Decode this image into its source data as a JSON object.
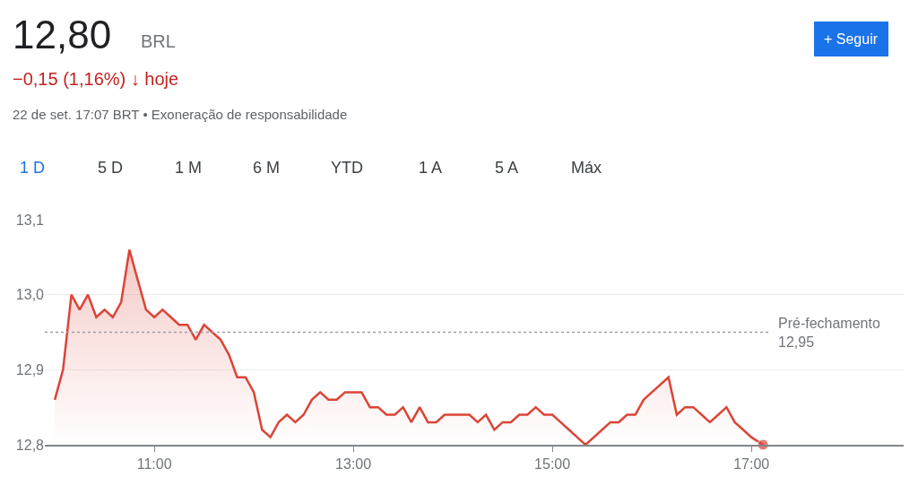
{
  "chart_data": {
    "type": "area",
    "annotations": [
      "12,80",
      "BRL",
      "−0,15 (1,16%) ↓ hoje",
      "22 de set. 17:07 BRT • Exoneração de responsabilidade",
      "+ Seguir",
      "1 D",
      "5 D",
      "1 M",
      "6 M",
      "YTD",
      "1 A",
      "5 A",
      "Máx"
    ],
    "x": [
      10,
      10.083,
      10.167,
      10.25,
      10.333,
      10.417,
      10.5,
      10.583,
      10.667,
      10.75,
      10.833,
      10.917,
      11,
      11.083,
      11.167,
      11.25,
      11.333,
      11.417,
      11.5,
      11.583,
      11.667,
      11.75,
      11.833,
      11.917,
      12,
      12.083,
      12.167,
      12.25,
      12.333,
      12.417,
      12.5,
      12.583,
      12.667,
      12.75,
      12.833,
      12.917,
      13,
      13.083,
      13.167,
      13.25,
      13.333,
      13.417,
      13.5,
      13.583,
      13.667,
      13.75,
      13.833,
      13.917,
      14,
      14.083,
      14.167,
      14.25,
      14.333,
      14.417,
      14.5,
      14.583,
      14.667,
      14.75,
      14.833,
      14.917,
      15,
      15.083,
      15.167,
      15.25,
      15.333,
      15.417,
      15.5,
      15.583,
      15.667,
      15.75,
      15.833,
      15.917,
      16,
      16.083,
      16.167,
      16.25,
      16.333,
      16.417,
      16.5,
      16.583,
      16.667,
      16.75,
      16.833,
      16.917,
      17,
      17.117
    ],
    "series": [
      {
        "color": "#db4437",
        "values": [
          12.86,
          12.9,
          13.0,
          12.98,
          13.0,
          12.97,
          12.98,
          12.97,
          12.99,
          13.06,
          13.02,
          12.98,
          12.97,
          12.98,
          12.97,
          12.96,
          12.96,
          12.94,
          12.96,
          12.95,
          12.94,
          12.92,
          12.89,
          12.89,
          12.87,
          12.82,
          12.81,
          12.83,
          12.84,
          12.83,
          12.84,
          12.86,
          12.87,
          12.86,
          12.86,
          12.87,
          12.87,
          12.87,
          12.85,
          12.85,
          12.84,
          12.84,
          12.85,
          12.83,
          12.85,
          12.83,
          12.83,
          12.84,
          12.84,
          12.84,
          12.84,
          12.83,
          12.84,
          12.82,
          12.83,
          12.83,
          12.84,
          12.84,
          12.85,
          12.84,
          12.84,
          12.83,
          12.82,
          12.81,
          12.8,
          12.81,
          12.82,
          12.83,
          12.83,
          12.84,
          12.84,
          12.86,
          12.87,
          12.88,
          12.89,
          12.84,
          12.85,
          12.85,
          12.84,
          12.83,
          12.84,
          12.85,
          12.83,
          12.82,
          12.81,
          12.8
        ]
      }
    ],
    "xlim": [
      9.9,
      18.53
    ],
    "xticks": [
      {
        "value": 11,
        "label": "11:00"
      },
      {
        "value": 13,
        "label": "13:00"
      },
      {
        "value": 15,
        "label": "15:00"
      },
      {
        "value": 17,
        "label": "17:00"
      }
    ],
    "ylim": [
      12.8,
      13.1
    ],
    "yticks": [
      {
        "value": 12.8,
        "label": "12,8"
      },
      {
        "value": 12.9,
        "label": "12,9"
      },
      {
        "value": 13.0,
        "label": "13,0"
      },
      {
        "value": 13.1,
        "label": "13,1"
      }
    ],
    "ref_lines": [
      {
        "axis": "y",
        "value": 12.95,
        "label": "Pré-fechamento\n12,95",
        "color": "#9aa0a6",
        "line_style": "dotted"
      }
    ],
    "grid": "y"
  }
}
